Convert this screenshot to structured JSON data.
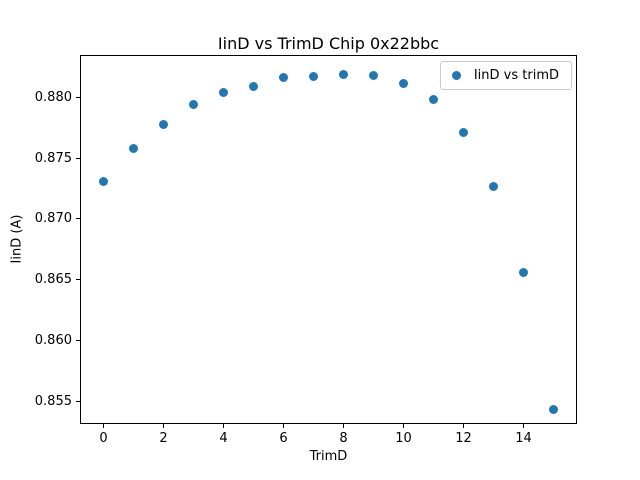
{
  "chart_data": {
    "type": "scatter",
    "title": "IinD vs TrimD Chip 0x22bbc",
    "xlabel": "TrimD",
    "ylabel": "IinD (A)",
    "marker_color": "#1f77b4",
    "grid": false,
    "legend_position": "upper right",
    "xlim": [
      -0.75,
      15.75
    ],
    "ylim": [
      0.8532,
      0.8834
    ],
    "xticks": [
      0,
      2,
      4,
      6,
      8,
      10,
      12,
      14
    ],
    "xtick_labels": [
      "0",
      "2",
      "4",
      "6",
      "8",
      "10",
      "12",
      "14"
    ],
    "yticks": [
      0.855,
      0.86,
      0.865,
      0.87,
      0.875,
      0.88
    ],
    "ytick_labels": [
      "0.855",
      "0.860",
      "0.865",
      "0.870",
      "0.875",
      "0.880"
    ],
    "series": [
      {
        "name": "IinD vs trimD",
        "x": [
          0,
          1,
          2,
          3,
          4,
          5,
          6,
          7,
          8,
          9,
          10,
          11,
          12,
          13,
          14,
          15
        ],
        "y": [
          0.8731,
          0.8758,
          0.8778,
          0.8794,
          0.8804,
          0.8809,
          0.8816,
          0.8817,
          0.8819,
          0.8818,
          0.8811,
          0.8798,
          0.8771,
          0.8727,
          0.8656,
          0.8543
        ]
      }
    ]
  }
}
